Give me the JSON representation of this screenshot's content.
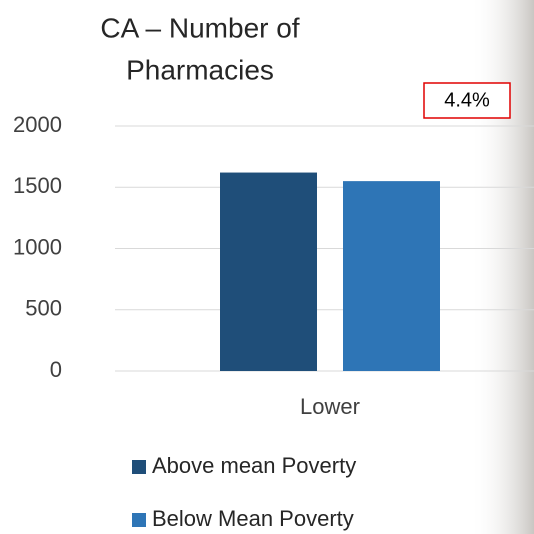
{
  "chart_data": {
    "type": "bar",
    "title_lines": [
      "CA – Number of",
      "Pharmacies"
    ],
    "annotation": "4.4%",
    "categories": [
      "Lower"
    ],
    "series": [
      {
        "name": "Above mean Poverty",
        "color": "#1f4e79",
        "values": [
          1620
        ]
      },
      {
        "name": "Below Mean Poverty",
        "color": "#2e75b6",
        "values": [
          1550
        ]
      }
    ],
    "ylim": [
      0,
      2000
    ],
    "yticks": [
      0,
      500,
      1000,
      1500,
      2000
    ],
    "grid": true
  }
}
